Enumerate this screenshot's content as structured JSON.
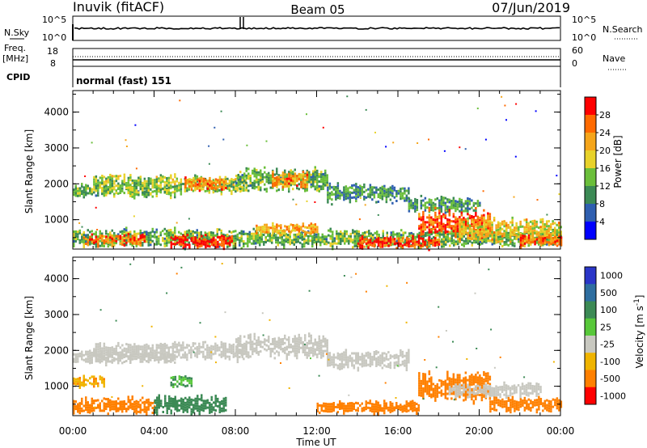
{
  "header": {
    "radar": "Inuvik (fitACF)",
    "beam": "Beam 05",
    "date": "07/Jun/2019"
  },
  "top_panels": {
    "nsky_label": "N.Sky",
    "nsearch_label": "N.Search",
    "nsky_ticks": [
      "10^5",
      "10^0"
    ],
    "nsearch_ticks": [
      "10^5",
      "10^0"
    ],
    "freq_label": "Freq.",
    "freq_unit": "[MHz]",
    "freq_ticks": [
      "18",
      "8"
    ],
    "nave_label": "Nave",
    "nave_ticks": [
      "60",
      "0"
    ],
    "cpid_label": "CPID",
    "cpid_value": "normal (fast) 151"
  },
  "chart_data": [
    {
      "type": "heatmap",
      "title": "",
      "xlabel": "Time UT",
      "ylabel": "Slant Range [km]",
      "x_ticks": [
        "00:00",
        "04:00",
        "08:00",
        "12:00",
        "16:00",
        "20:00",
        "00:00"
      ],
      "xlim_hours": [
        0,
        24
      ],
      "y_ticks": [
        "1000",
        "2000",
        "3000",
        "4000"
      ],
      "ylim": [
        180,
        4600
      ],
      "colorbar": {
        "label": "Power [dB]",
        "ticks": [
          "4",
          "8",
          "12",
          "16",
          "20",
          "24",
          "28"
        ],
        "range": [
          0,
          30
        ],
        "colors": [
          "#0000ff",
          "#2f5fb0",
          "#3c8a55",
          "#6bbf3b",
          "#e8d22a",
          "#f5a51a",
          "#ff6a00",
          "#ff0000"
        ]
      },
      "regions": [
        {
          "t0": 0.0,
          "t1": 5.0,
          "r0": 1650,
          "r1": 2000,
          "value": 12
        },
        {
          "t0": 1.0,
          "t1": 8.5,
          "r0": 1750,
          "r1": 2250,
          "value": 14
        },
        {
          "t0": 5.5,
          "t1": 7.5,
          "r0": 1850,
          "r1": 2200,
          "value": 22
        },
        {
          "t0": 8.0,
          "t1": 12.5,
          "r0": 1800,
          "r1": 2450,
          "value": 12
        },
        {
          "t0": 9.8,
          "t1": 11.5,
          "r0": 1900,
          "r1": 2350,
          "value": 22
        },
        {
          "t0": 12.5,
          "t1": 16.5,
          "r0": 1500,
          "r1": 2000,
          "value": 10
        },
        {
          "t0": 16.5,
          "t1": 20.0,
          "r0": 1200,
          "r1": 1650,
          "value": 10
        },
        {
          "t0": 0.0,
          "t1": 24.0,
          "r0": 250,
          "r1": 750,
          "value": 12
        },
        {
          "t0": 0.5,
          "t1": 3.5,
          "r0": 300,
          "r1": 600,
          "value": 24
        },
        {
          "t0": 4.8,
          "t1": 7.8,
          "r0": 200,
          "r1": 600,
          "value": 28
        },
        {
          "t0": 9.0,
          "t1": 12.0,
          "r0": 600,
          "r1": 900,
          "value": 20
        },
        {
          "t0": 14.0,
          "t1": 18.0,
          "r0": 200,
          "r1": 550,
          "value": 26
        },
        {
          "t0": 17.0,
          "t1": 20.5,
          "r0": 500,
          "r1": 1300,
          "value": 26
        },
        {
          "t0": 19.0,
          "t1": 24.0,
          "r0": 400,
          "r1": 1050,
          "value": 18
        },
        {
          "t0": 22.0,
          "t1": 24.0,
          "r0": 250,
          "r1": 600,
          "value": 24
        }
      ]
    },
    {
      "type": "heatmap",
      "title": "",
      "xlabel": "Time UT",
      "ylabel": "Slant Range [km]",
      "x_ticks": [
        "00:00",
        "04:00",
        "08:00",
        "12:00",
        "16:00",
        "20:00",
        "00:00"
      ],
      "xlim_hours": [
        0,
        24
      ],
      "y_ticks": [
        "1000",
        "2000",
        "3000",
        "4000"
      ],
      "ylim": [
        180,
        4600
      ],
      "colorbar": {
        "label": "Velocity [m s^-1]",
        "ticks": [
          "1000",
          "500",
          "100",
          "25",
          "-25",
          "-100",
          "-500",
          "-1000"
        ],
        "colors": [
          "#2a36c8",
          "#2e6ea0",
          "#3c8a55",
          "#58c83a",
          "#c8c8c0",
          "#f0b400",
          "#ff8000",
          "#ff0000"
        ]
      },
      "regions": [
        {
          "t0": 0.0,
          "t1": 5.0,
          "r0": 1650,
          "r1": 2000,
          "value": 0
        },
        {
          "t0": 1.0,
          "t1": 8.5,
          "r0": 1750,
          "r1": 2250,
          "value": 0
        },
        {
          "t0": 8.0,
          "t1": 12.5,
          "r0": 1800,
          "r1": 2450,
          "value": 0
        },
        {
          "t0": 12.5,
          "t1": 16.5,
          "r0": 1500,
          "r1": 2000,
          "value": 0
        },
        {
          "t0": 0.0,
          "t1": 1.5,
          "r0": 1000,
          "r1": 1300,
          "value": -80
        },
        {
          "t0": 0.0,
          "t1": 4.0,
          "r0": 250,
          "r1": 700,
          "value": -300
        },
        {
          "t0": 4.0,
          "t1": 7.5,
          "r0": 250,
          "r1": 750,
          "value": 150
        },
        {
          "t0": 4.8,
          "t1": 5.8,
          "r0": 1000,
          "r1": 1300,
          "value": 60
        },
        {
          "t0": 12.0,
          "t1": 17.0,
          "r0": 250,
          "r1": 600,
          "value": -300
        },
        {
          "t0": 17.0,
          "t1": 20.5,
          "r0": 600,
          "r1": 1400,
          "value": -350
        },
        {
          "t0": 18.5,
          "t1": 23.0,
          "r0": 700,
          "r1": 1100,
          "value": 0
        },
        {
          "t0": 20.5,
          "t1": 24.0,
          "r0": 300,
          "r1": 700,
          "value": -300
        }
      ]
    }
  ]
}
